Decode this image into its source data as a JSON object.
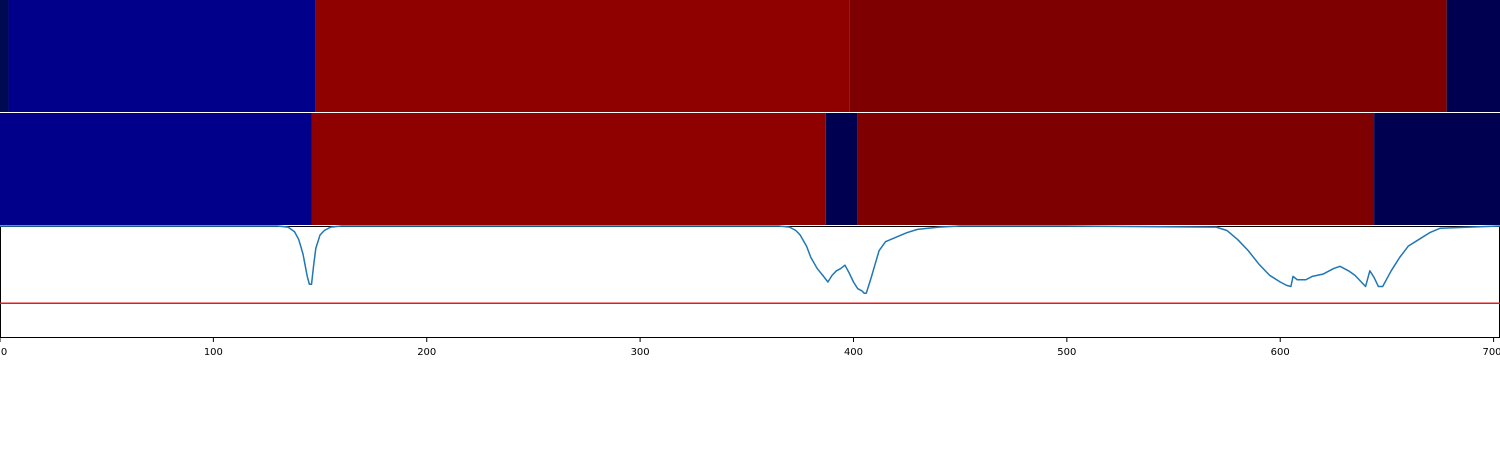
{
  "chart_data": [
    {
      "type": "heatmap",
      "panel": "top",
      "segments": [
        {
          "start": 0,
          "end": 4,
          "color": "#000A52"
        },
        {
          "start": 4,
          "end": 148,
          "color": "#00008B"
        },
        {
          "start": 148,
          "end": 398,
          "color": "#8F0000"
        },
        {
          "start": 398,
          "end": 678,
          "color": "#7F0000"
        },
        {
          "start": 678,
          "end": 703,
          "color": "#000050"
        }
      ]
    },
    {
      "type": "heatmap",
      "panel": "middle",
      "segments": [
        {
          "start": 0,
          "end": 146,
          "color": "#00008B"
        },
        {
          "start": 146,
          "end": 387,
          "color": "#8F0000"
        },
        {
          "start": 387,
          "end": 402,
          "color": "#000050"
        },
        {
          "start": 402,
          "end": 644,
          "color": "#7F0000"
        },
        {
          "start": 644,
          "end": 703,
          "color": "#000050"
        }
      ]
    },
    {
      "type": "line",
      "panel": "bottom",
      "xlim": [
        0,
        703
      ],
      "ylim": [
        0,
        1
      ],
      "threshold": 0.31,
      "line_color": "#1F77B4",
      "threshold_color": "#E41A1C",
      "x_ticks": [
        {
          "value": 0,
          "label": "0"
        },
        {
          "value": 100,
          "label": "100"
        },
        {
          "value": 200,
          "label": "200"
        },
        {
          "value": 300,
          "label": "300"
        },
        {
          "value": 400,
          "label": "400"
        },
        {
          "value": 500,
          "label": "500"
        },
        {
          "value": 600,
          "label": "600"
        },
        {
          "value": 700,
          "label": "700"
        }
      ],
      "series": [
        {
          "x": [
            0,
            130,
            135,
            138,
            140,
            142,
            143,
            144,
            145,
            146,
            147,
            148,
            150,
            152,
            155,
            160,
            200,
            300,
            365,
            370,
            373,
            375,
            378,
            380,
            383,
            386,
            388,
            390,
            392,
            394,
            396,
            398,
            400,
            402,
            404,
            405,
            406,
            408,
            410,
            412,
            415,
            420,
            425,
            430,
            440,
            450,
            500,
            570,
            575,
            580,
            585,
            590,
            595,
            600,
            603,
            605,
            606,
            608,
            612,
            615,
            620,
            625,
            628,
            630,
            632,
            635,
            638,
            640,
            642,
            644,
            646,
            648,
            652,
            656,
            660,
            665,
            670,
            675,
            703
          ],
          "y": [
            1.0,
            1.0,
            0.99,
            0.95,
            0.88,
            0.75,
            0.65,
            0.55,
            0.48,
            0.48,
            0.65,
            0.8,
            0.92,
            0.96,
            0.99,
            1.0,
            1.0,
            1.0,
            1.0,
            0.99,
            0.96,
            0.92,
            0.82,
            0.72,
            0.62,
            0.55,
            0.5,
            0.56,
            0.6,
            0.62,
            0.65,
            0.58,
            0.5,
            0.44,
            0.42,
            0.4,
            0.4,
            0.52,
            0.65,
            0.78,
            0.86,
            0.9,
            0.94,
            0.97,
            0.99,
            1.0,
            1.0,
            0.99,
            0.96,
            0.88,
            0.78,
            0.66,
            0.56,
            0.5,
            0.47,
            0.46,
            0.55,
            0.52,
            0.52,
            0.55,
            0.57,
            0.62,
            0.64,
            0.62,
            0.6,
            0.56,
            0.5,
            0.46,
            0.6,
            0.54,
            0.46,
            0.46,
            0.6,
            0.72,
            0.82,
            0.88,
            0.94,
            0.98,
            1.0
          ]
        }
      ]
    }
  ]
}
